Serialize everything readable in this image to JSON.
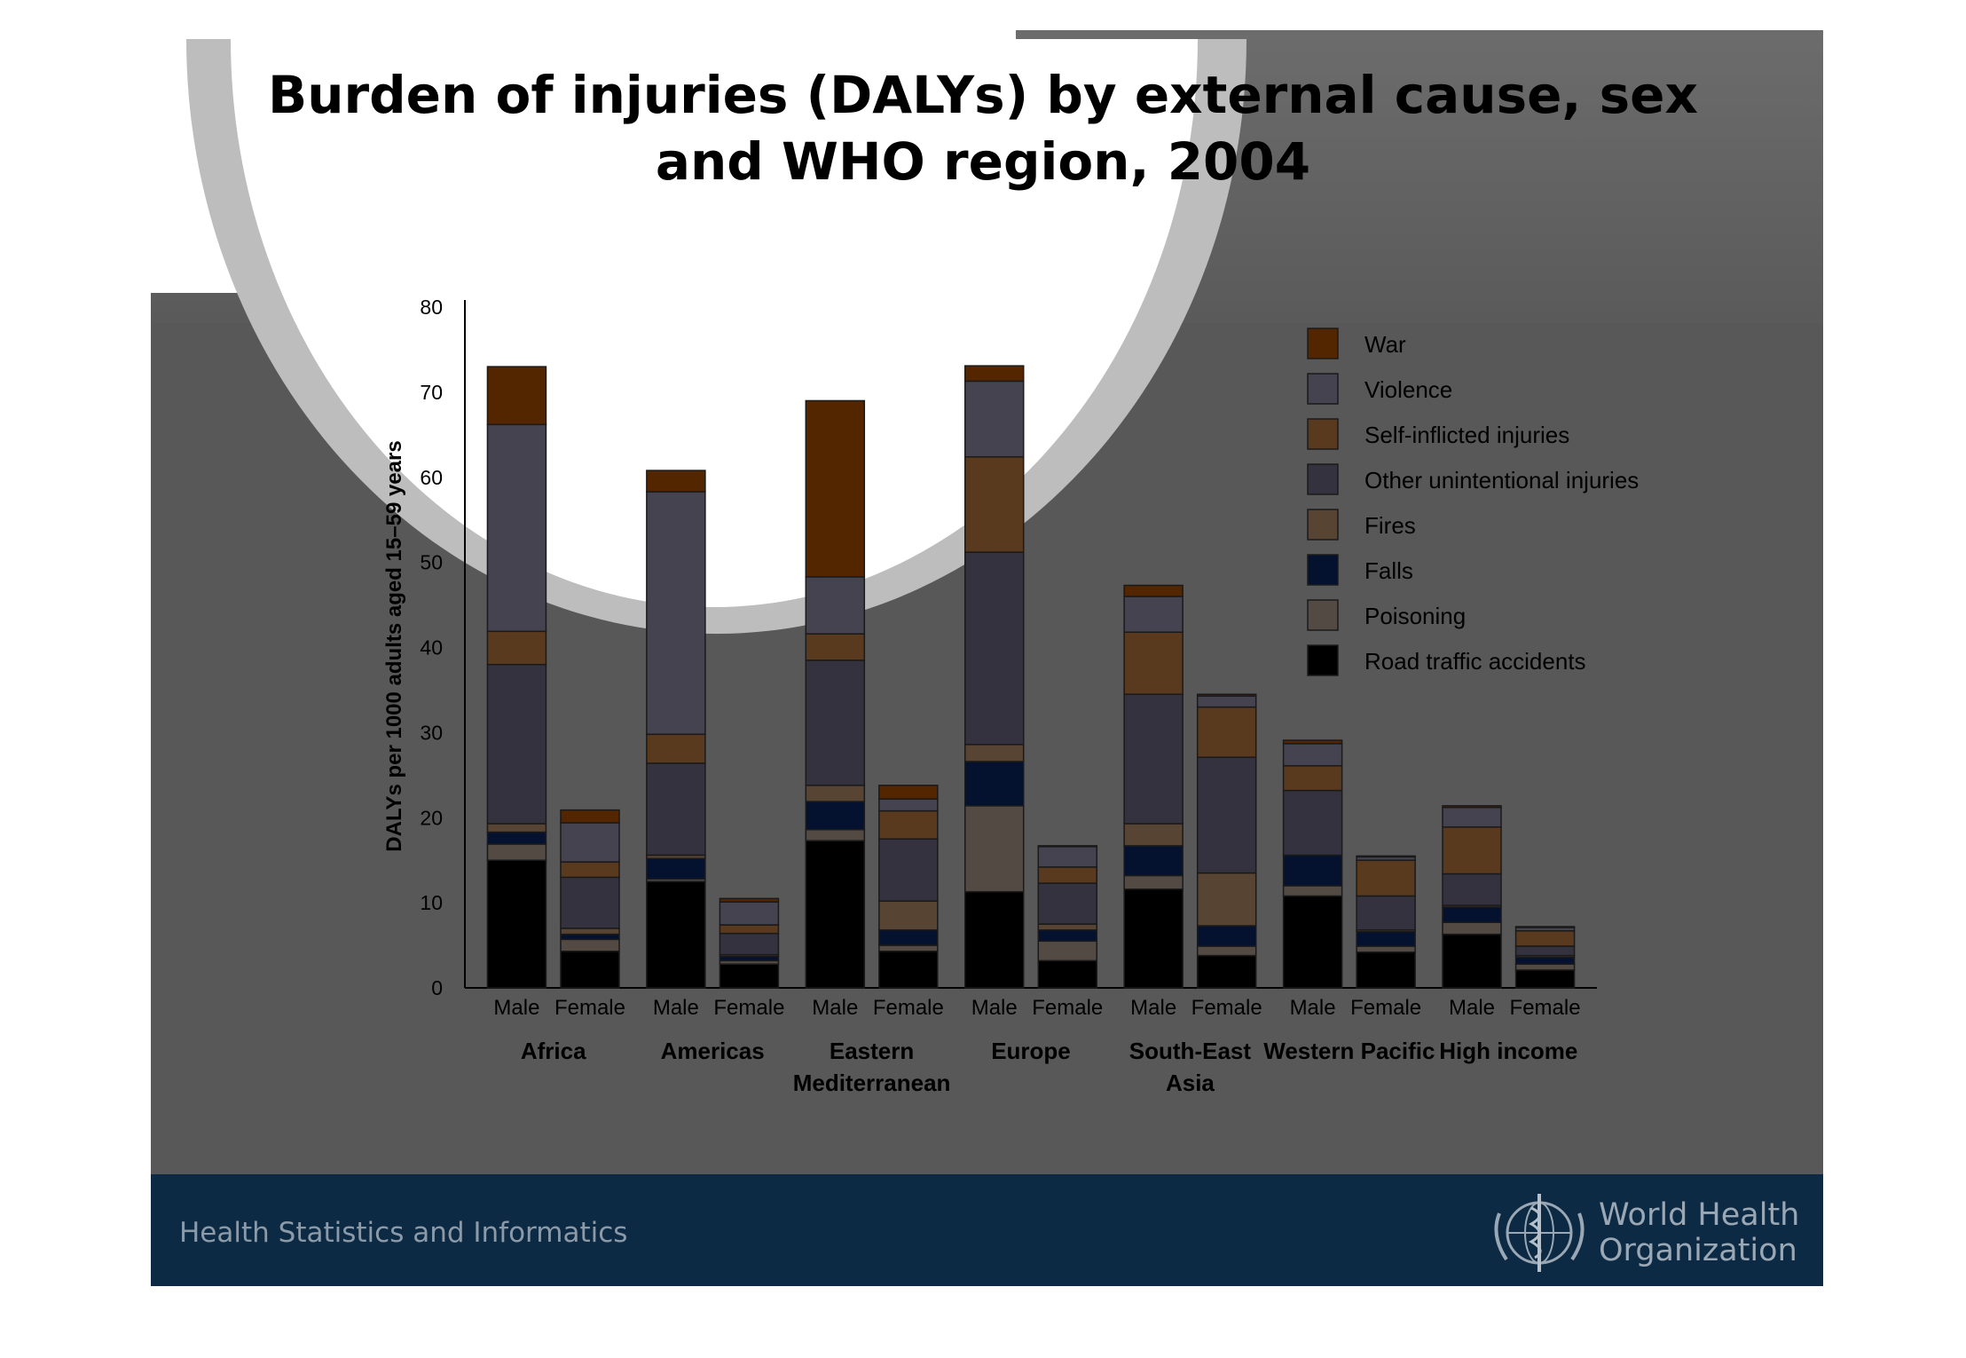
{
  "title": "Burden of injuries (DALYs) by external cause, sex\nand WHO region, 2004",
  "footer": {
    "text": "Health Statistics and Informatics",
    "org_line1": "World Health",
    "org_line2": "Organization"
  },
  "colors": {
    "war": "#542600",
    "violence": "#45434f",
    "self_inflicted": "#5a3a1f",
    "other_unintentional": "#34323f",
    "fires": "#584433",
    "falls": "#041230",
    "poisoning": "#524a43",
    "road_traffic": "#000000",
    "highlight_orange": "#ffa50f",
    "slide_bg": "#585858",
    "footer_bg": "#0d2a44"
  },
  "chart_data": {
    "type": "bar",
    "stacked": true,
    "ylabel": "DALYs per 1000 adults aged 15–59 years",
    "ylim": [
      0,
      80
    ],
    "yticks": [
      0,
      10,
      20,
      30,
      40,
      50,
      60,
      70,
      80
    ],
    "groups": [
      "Africa",
      "Americas",
      "Eastern Mediterranean",
      "Europe",
      "South-East Asia",
      "Western Pacific",
      "High income"
    ],
    "sexes": [
      "Male",
      "Female"
    ],
    "categories": [
      "Male",
      "Female",
      "Male",
      "Female",
      "Male",
      "Female",
      "Male",
      "Female",
      "Male",
      "Female",
      "Male",
      "Female",
      "Male",
      "Female"
    ],
    "legend_position": "top-right",
    "series": [
      {
        "name": "Road traffic accidents",
        "key": "road_traffic",
        "values": [
          15,
          4.3,
          12.5,
          2.8,
          17.3,
          4.3,
          11.3,
          3.2,
          11.6,
          3.8,
          10.8,
          4.2,
          6.3,
          2.1
        ]
      },
      {
        "name": "Poisoning",
        "key": "poisoning",
        "values": [
          1.9,
          1.4,
          0.3,
          0.4,
          1.3,
          0.7,
          10.1,
          2.3,
          1.6,
          1.1,
          1.2,
          0.7,
          1.4,
          0.7
        ]
      },
      {
        "name": "Falls",
        "key": "falls",
        "values": [
          1.4,
          0.6,
          2.4,
          0.5,
          3.3,
          1.8,
          5.2,
          1.3,
          3.5,
          2.4,
          3.6,
          1.7,
          1.8,
          0.8
        ]
      },
      {
        "name": "Fires",
        "key": "fires",
        "values": [
          1.0,
          0.7,
          0.4,
          0.2,
          1.9,
          3.4,
          2.0,
          0.7,
          2.6,
          6.2,
          0.0,
          0.2,
          0.2,
          0.2
        ]
      },
      {
        "name": "Other unintentional injuries",
        "key": "other_unintentional",
        "values": [
          18.7,
          6.0,
          10.8,
          2.5,
          14.7,
          7.3,
          22.6,
          4.8,
          15.2,
          13.6,
          7.6,
          4.0,
          3.7,
          1.1
        ]
      },
      {
        "name": "Self-inflicted injuries",
        "key": "self_inflicted",
        "values": [
          3.9,
          1.8,
          3.4,
          1.0,
          3.1,
          3.3,
          11.2,
          1.9,
          7.3,
          5.9,
          2.9,
          4.2,
          5.5,
          1.8
        ]
      },
      {
        "name": "Violence",
        "key": "violence",
        "values": [
          24.3,
          4.6,
          28.5,
          2.7,
          6.7,
          1.4,
          8.9,
          2.4,
          4.2,
          1.3,
          2.6,
          0.4,
          2.3,
          0.4
        ]
      },
      {
        "name": "War",
        "key": "war",
        "values": [
          6.8,
          1.5,
          2.5,
          0.4,
          20.7,
          1.6,
          1.8,
          0.1,
          1.3,
          0.2,
          0.4,
          0.1,
          0.2,
          0.1
        ]
      }
    ]
  }
}
